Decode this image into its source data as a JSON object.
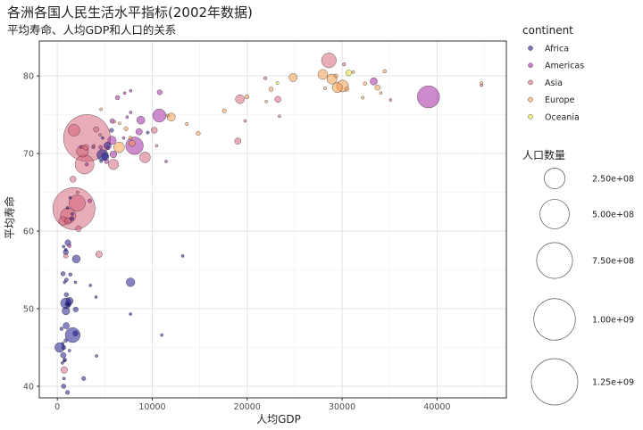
{
  "chart_data": {
    "type": "scatter",
    "title": "各洲各国人民生活水平指标(2002年数据)",
    "subtitle": "平均寿命、人均GDP和人口的关系",
    "xlabel": "人均GDP",
    "ylabel": "平均寿命",
    "xlim": [
      -1900,
      47300
    ],
    "ylim": [
      38.5,
      84.5
    ],
    "x_ticks": [
      0,
      10000,
      20000,
      30000,
      40000
    ],
    "x_tick_labels": [
      "0",
      "10000",
      "20000",
      "30000",
      "40000"
    ],
    "y_ticks": [
      40,
      50,
      60,
      70,
      80
    ],
    "y_tick_labels": [
      "40",
      "50",
      "60",
      "70",
      "80"
    ],
    "grid": true,
    "legend_position": "right",
    "color_legend": {
      "title": "continent",
      "entries": [
        {
          "name": "Africa",
          "color": "#0d0887"
        },
        {
          "name": "Americas",
          "color": "#9c179e"
        },
        {
          "name": "Asia",
          "color": "#d45a73"
        },
        {
          "name": "Europe",
          "color": "#f89540"
        },
        {
          "name": "Oceania",
          "color": "#e8e619"
        }
      ]
    },
    "size_legend": {
      "title": "人口数量",
      "entries": [
        {
          "value": 250000000,
          "label": "2.50e+08"
        },
        {
          "value": 500000000,
          "label": "5.00e+08"
        },
        {
          "value": 750000000,
          "label": "7.50e+08"
        },
        {
          "value": 1000000000,
          "label": "1.00e+09"
        },
        {
          "value": 1250000000,
          "label": "1.25e+09"
        }
      ]
    },
    "series": [
      {
        "name": "Africa",
        "points": [
          [
            5288,
            71.0,
            31
          ],
          [
            2773,
            41.0,
            10
          ],
          [
            1373,
            54.4,
            7
          ],
          [
            11004,
            46.6,
            1.6
          ],
          [
            1038,
            50.6,
            12
          ],
          [
            446,
            47.4,
            7
          ],
          [
            1934,
            49.9,
            15
          ],
          [
            4604,
            69.0,
            0.5
          ],
          [
            739,
            43.3,
            4
          ],
          [
            1156,
            50.5,
            9
          ],
          [
            1076,
            63.0,
            0.6
          ],
          [
            241,
            45.0,
            55
          ],
          [
            3484,
            53.0,
            3
          ],
          [
            1908,
            46.8,
            16
          ],
          [
            1908,
            53.4,
            0.7
          ],
          [
            4754,
            69.8,
            73
          ],
          [
            7703,
            49.3,
            0.5
          ],
          [
            765,
            53.4,
            4
          ],
          [
            912,
            50.7,
            67
          ],
          [
            13206,
            56.8,
            1.3
          ],
          [
            661,
            58.0,
            1.5
          ],
          [
            1112,
            58.5,
            20
          ],
          [
            946,
            53.7,
            9
          ],
          [
            576,
            45.5,
            1.3
          ],
          [
            1287,
            50.99,
            31
          ],
          [
            1275,
            44.6,
            2
          ],
          [
            531,
            43.0,
            3
          ],
          [
            9534,
            72.7,
            5.4
          ],
          [
            895,
            57.3,
            16
          ],
          [
            666,
            45.0,
            11
          ],
          [
            952,
            51.8,
            11
          ],
          [
            1579,
            62.2,
            2.8
          ],
          [
            4768,
            72.0,
            1.2
          ],
          [
            5044,
            69.6,
            31
          ],
          [
            633,
            44.0,
            18
          ],
          [
            4073,
            51.5,
            2
          ],
          [
            601,
            54.5,
            11
          ],
          [
            1615,
            46.6,
            130
          ],
          [
            786,
            43.4,
            8
          ],
          [
            1353,
            64.3,
            0.17
          ],
          [
            1520,
            61.6,
            10
          ],
          [
            699,
            41.0,
            5
          ],
          [
            882,
            45.9,
            8
          ],
          [
            7710,
            53.4,
            44
          ],
          [
            1993,
            56.4,
            37
          ],
          [
            4128,
            43.9,
            1.1
          ],
          [
            899,
            49.7,
            35
          ],
          [
            886,
            57.6,
            4.9
          ],
          [
            5723,
            73.0,
            9.8
          ],
          [
            927,
            47.8,
            24
          ],
          [
            1072,
            39.2,
            10
          ],
          [
            672,
            39.99,
            12
          ]
        ]
      },
      {
        "name": "Americas",
        "points": [
          [
            8798,
            74.3,
            38
          ],
          [
            3413,
            63.9,
            8.4
          ],
          [
            8131,
            71.0,
            179
          ],
          [
            33329,
            79.3,
            31
          ],
          [
            10779,
            77.9,
            15.5
          ],
          [
            5755,
            71.7,
            41
          ],
          [
            7724,
            78.1,
            3.8
          ],
          [
            6341,
            77.2,
            11
          ],
          [
            4564,
            70.8,
            8.6
          ],
          [
            5773,
            74.2,
            12.9
          ],
          [
            5351,
            70.7,
            6.4
          ],
          [
            5186,
            68.98,
            11
          ],
          [
            1270,
            58.1,
            7.6
          ],
          [
            3099,
            68.6,
            6.6
          ],
          [
            6994,
            72.0,
            2.7
          ],
          [
            10742,
            74.9,
            102
          ],
          [
            2475,
            70.8,
            5.1
          ],
          [
            7357,
            74.7,
            3
          ],
          [
            3784,
            70.8,
            5.9
          ],
          [
            5909,
            69.9,
            27
          ],
          [
            7092,
            77.8,
            3.9
          ],
          [
            11460,
            68.98,
            1.1
          ],
          [
            39097,
            77.3,
            287
          ],
          [
            7727,
            75.3,
            3.4
          ],
          [
            8605,
            72.8,
            25
          ]
        ]
      },
      {
        "name": "Asia",
        "points": [
          [
            727,
            42.1,
            25
          ],
          [
            23404,
            74.8,
            0.66
          ],
          [
            1136,
            62.0,
            135
          ],
          [
            896,
            56.8,
            12
          ],
          [
            3119,
            72.0,
            1280
          ],
          [
            30209,
            81.5,
            6.8
          ],
          [
            1747,
            62.9,
            1035
          ],
          [
            2874,
            68.6,
            211
          ],
          [
            9241,
            69.5,
            66
          ],
          [
            4391,
            57.0,
            24
          ],
          [
            21906,
            79.7,
            6
          ],
          [
            28605,
            82.0,
            127
          ],
          [
            3845,
            71.0,
            5.3
          ],
          [
            1646,
            66.7,
            22
          ],
          [
            19234,
            77.0,
            47
          ],
          [
            35110,
            76.9,
            2.1
          ],
          [
            10461,
            71.0,
            3.7
          ],
          [
            10207,
            73.0,
            22
          ],
          [
            2140,
            65.0,
            2.5
          ],
          [
            611,
            61.3,
            45
          ],
          [
            1091,
            61.3,
            25
          ],
          [
            19775,
            74.2,
            2.7
          ],
          [
            2092,
            63.6,
            153
          ],
          [
            2651,
            70.3,
            82
          ],
          [
            19014,
            71.6,
            24
          ],
          [
            44684,
            78.8,
            4.2
          ],
          [
            3015,
            70.8,
            19
          ],
          [
            4090,
            73.1,
            17
          ],
          [
            23235,
            76.99,
            22
          ],
          [
            5913,
            68.6,
            62
          ],
          [
            1764,
            73.0,
            80
          ],
          [
            4515,
            72.4,
            3.4
          ],
          [
            2234,
            60.3,
            19
          ]
        ]
      },
      {
        "name": "Europe",
        "points": [
          [
            4604,
            75.7,
            3.5
          ],
          [
            32418,
            79.0,
            8.1
          ],
          [
            30486,
            78.3,
            10
          ],
          [
            6019,
            74.1,
            4.2
          ],
          [
            7697,
            72.0,
            7.7
          ],
          [
            11628,
            74.9,
            4.5
          ],
          [
            17596,
            75.5,
            10
          ],
          [
            32167,
            77.2,
            5.4
          ],
          [
            28204,
            78.4,
            5.2
          ],
          [
            28926,
            79.6,
            59
          ],
          [
            30036,
            78.7,
            82
          ],
          [
            22514,
            78.3,
            11
          ],
          [
            14844,
            72.6,
            10
          ],
          [
            31163,
            80.5,
            0.29
          ],
          [
            34077,
            77.8,
            3.9
          ],
          [
            27968,
            80.2,
            57
          ],
          [
            6557,
            73.9,
            0.72
          ],
          [
            33725,
            78.5,
            16
          ],
          [
            44684,
            79.1,
            4.5
          ],
          [
            12002,
            74.7,
            38
          ],
          [
            19971,
            77.3,
            10
          ],
          [
            7885,
            71.3,
            22
          ],
          [
            7236,
            73.2,
            10
          ],
          [
            13638,
            73.8,
            5.4
          ],
          [
            22012,
            76.7,
            2
          ],
          [
            24835,
            79.8,
            40
          ],
          [
            29342,
            80.0,
            8.9
          ],
          [
            34481,
            80.6,
            7.4
          ],
          [
            6508,
            70.8,
            67
          ],
          [
            29479,
            78.5,
            59
          ]
        ]
      },
      {
        "name": "Oceania",
        "points": [
          [
            30688,
            80.4,
            20
          ],
          [
            23190,
            79.1,
            4
          ]
        ]
      }
    ]
  }
}
